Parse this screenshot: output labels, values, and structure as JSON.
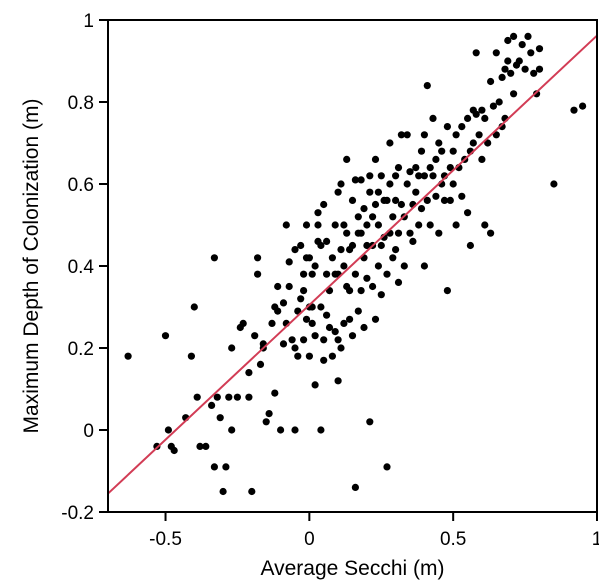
{
  "chart_data": {
    "type": "scatter",
    "title": "",
    "xlabel": "Average Secchi (m)",
    "ylabel": "Maximum Depth of Colonization (m)",
    "xlim": [
      -0.7,
      1.0
    ],
    "ylim": [
      -0.2,
      1.0
    ],
    "x_ticks": [
      -0.5,
      0,
      0.5,
      1
    ],
    "x_tick_labels": [
      "-0.5",
      "0",
      "0.5",
      "1"
    ],
    "y_ticks": [
      -0.2,
      0,
      0.2,
      0.4,
      0.6,
      0.8,
      1
    ],
    "y_tick_labels": [
      "-0.2",
      "0",
      "0.2",
      "0.4",
      "0.6",
      "0.8",
      "1"
    ],
    "grid": false,
    "legend": "none",
    "point_color": "#000000",
    "fit_line_color": "#d23c55",
    "fit_line": {
      "x": [
        -0.7,
        1.0
      ],
      "y": [
        -0.155,
        0.962
      ]
    },
    "series": [
      {
        "values": [
          [
            -0.63,
            0.18
          ],
          [
            -0.53,
            -0.04
          ],
          [
            -0.5,
            0.23
          ],
          [
            -0.49,
            0.0
          ],
          [
            -0.48,
            -0.04
          ],
          [
            -0.47,
            -0.05
          ],
          [
            -0.43,
            0.03
          ],
          [
            -0.41,
            0.18
          ],
          [
            -0.4,
            0.3
          ],
          [
            -0.39,
            0.08
          ],
          [
            -0.38,
            -0.04
          ],
          [
            -0.36,
            -0.04
          ],
          [
            -0.34,
            0.06
          ],
          [
            -0.33,
            0.42
          ],
          [
            -0.33,
            -0.09
          ],
          [
            -0.32,
            0.08
          ],
          [
            -0.31,
            0.03
          ],
          [
            -0.3,
            -0.15
          ],
          [
            -0.29,
            -0.09
          ],
          [
            -0.28,
            0.08
          ],
          [
            -0.27,
            0.0
          ],
          [
            -0.27,
            0.2
          ],
          [
            -0.25,
            0.08
          ],
          [
            -0.24,
            0.25
          ],
          [
            -0.23,
            0.26
          ],
          [
            -0.21,
            0.14
          ],
          [
            -0.21,
            0.08
          ],
          [
            -0.2,
            -0.15
          ],
          [
            -0.19,
            0.23
          ],
          [
            -0.18,
            0.38
          ],
          [
            -0.18,
            0.42
          ],
          [
            -0.17,
            0.16
          ],
          [
            -0.16,
            0.21
          ],
          [
            -0.16,
            0.2
          ],
          [
            -0.15,
            0.02
          ],
          [
            -0.14,
            0.04
          ],
          [
            -0.13,
            0.26
          ],
          [
            -0.12,
            0.09
          ],
          [
            -0.12,
            0.3
          ],
          [
            -0.11,
            0.29
          ],
          [
            -0.11,
            0.35
          ],
          [
            -0.1,
            0.0
          ],
          [
            -0.09,
            0.21
          ],
          [
            -0.09,
            0.31
          ],
          [
            -0.08,
            0.26
          ],
          [
            -0.08,
            0.5
          ],
          [
            -0.07,
            0.41
          ],
          [
            -0.07,
            0.35
          ],
          [
            -0.06,
            0.22
          ],
          [
            -0.05,
            0.2
          ],
          [
            -0.05,
            0.44
          ],
          [
            -0.05,
            0.0
          ],
          [
            -0.04,
            0.18
          ],
          [
            -0.04,
            0.29
          ],
          [
            -0.03,
            0.32
          ],
          [
            -0.03,
            0.45
          ],
          [
            -0.02,
            0.34
          ],
          [
            -0.02,
            0.22
          ],
          [
            -0.02,
            0.38
          ],
          [
            -0.01,
            0.5
          ],
          [
            -0.01,
            0.27
          ],
          [
            -0.01,
            0.42
          ],
          [
            0.0,
            0.18
          ],
          [
            0.0,
            0.3
          ],
          [
            0.0,
            0.42
          ],
          [
            0.01,
            0.26
          ],
          [
            0.01,
            0.38
          ],
          [
            0.01,
            0.3
          ],
          [
            0.02,
            0.11
          ],
          [
            0.02,
            0.23
          ],
          [
            0.02,
            0.4
          ],
          [
            0.03,
            0.46
          ],
          [
            0.03,
            0.53
          ],
          [
            0.03,
            0.5
          ],
          [
            0.04,
            0.3
          ],
          [
            0.04,
            0.45
          ],
          [
            0.04,
            0.0
          ],
          [
            0.05,
            0.17
          ],
          [
            0.05,
            0.22
          ],
          [
            0.05,
            0.55
          ],
          [
            0.06,
            0.28
          ],
          [
            0.06,
            0.38
          ],
          [
            0.06,
            0.46
          ],
          [
            0.07,
            0.25
          ],
          [
            0.07,
            0.34
          ],
          [
            0.08,
            0.42
          ],
          [
            0.08,
            0.18
          ],
          [
            0.09,
            0.24
          ],
          [
            0.09,
            0.38
          ],
          [
            0.09,
            0.5
          ],
          [
            0.1,
            0.22
          ],
          [
            0.1,
            0.12
          ],
          [
            0.1,
            0.38
          ],
          [
            0.1,
            0.58
          ],
          [
            0.11,
            0.44
          ],
          [
            0.11,
            0.2
          ],
          [
            0.11,
            0.6
          ],
          [
            0.12,
            0.4
          ],
          [
            0.12,
            0.26
          ],
          [
            0.12,
            0.5
          ],
          [
            0.13,
            0.35
          ],
          [
            0.13,
            0.48
          ],
          [
            0.13,
            0.66
          ],
          [
            0.14,
            0.27
          ],
          [
            0.14,
            0.44
          ],
          [
            0.14,
            0.34
          ],
          [
            0.15,
            0.45
          ],
          [
            0.15,
            0.23
          ],
          [
            0.15,
            0.56
          ],
          [
            0.16,
            -0.14
          ],
          [
            0.16,
            0.38
          ],
          [
            0.16,
            0.61
          ],
          [
            0.17,
            0.29
          ],
          [
            0.17,
            0.48
          ],
          [
            0.17,
            0.52
          ],
          [
            0.18,
            0.34
          ],
          [
            0.18,
            0.48
          ],
          [
            0.18,
            0.61
          ],
          [
            0.19,
            0.42
          ],
          [
            0.19,
            0.54
          ],
          [
            0.19,
            0.25
          ],
          [
            0.2,
            0.5
          ],
          [
            0.2,
            0.37
          ],
          [
            0.2,
            0.45
          ],
          [
            0.21,
            0.02
          ],
          [
            0.21,
            0.58
          ],
          [
            0.21,
            0.62
          ],
          [
            0.22,
            0.45
          ],
          [
            0.22,
            0.52
          ],
          [
            0.22,
            0.35
          ],
          [
            0.23,
            0.27
          ],
          [
            0.23,
            0.55
          ],
          [
            0.23,
            0.66
          ],
          [
            0.24,
            0.4
          ],
          [
            0.24,
            0.5
          ],
          [
            0.24,
            0.58
          ],
          [
            0.25,
            0.62
          ],
          [
            0.25,
            0.33
          ],
          [
            0.25,
            0.45
          ],
          [
            0.26,
            0.47
          ],
          [
            0.26,
            0.56
          ],
          [
            0.27,
            -0.09
          ],
          [
            0.27,
            0.38
          ],
          [
            0.27,
            0.56
          ],
          [
            0.28,
            0.48
          ],
          [
            0.28,
            0.6
          ],
          [
            0.28,
            0.7
          ],
          [
            0.29,
            0.52
          ],
          [
            0.29,
            0.42
          ],
          [
            0.3,
            0.56
          ],
          [
            0.3,
            0.44
          ],
          [
            0.3,
            0.62
          ],
          [
            0.31,
            0.48
          ],
          [
            0.31,
            0.36
          ],
          [
            0.31,
            0.64
          ],
          [
            0.32,
            0.55
          ],
          [
            0.32,
            0.72
          ],
          [
            0.33,
            0.52
          ],
          [
            0.33,
            0.4
          ],
          [
            0.34,
            0.6
          ],
          [
            0.34,
            0.72
          ],
          [
            0.35,
            0.48
          ],
          [
            0.35,
            0.63
          ],
          [
            0.36,
            0.55
          ],
          [
            0.36,
            0.46
          ],
          [
            0.37,
            0.64
          ],
          [
            0.37,
            0.58
          ],
          [
            0.38,
            0.5
          ],
          [
            0.38,
            0.62
          ],
          [
            0.39,
            0.68
          ],
          [
            0.39,
            0.54
          ],
          [
            0.4,
            0.62
          ],
          [
            0.4,
            0.4
          ],
          [
            0.4,
            0.72
          ],
          [
            0.41,
            0.56
          ],
          [
            0.41,
            0.84
          ],
          [
            0.42,
            0.64
          ],
          [
            0.42,
            0.5
          ],
          [
            0.43,
            0.62
          ],
          [
            0.43,
            0.76
          ],
          [
            0.44,
            0.57
          ],
          [
            0.44,
            0.66
          ],
          [
            0.45,
            0.48
          ],
          [
            0.45,
            0.7
          ],
          [
            0.46,
            0.6
          ],
          [
            0.46,
            0.68
          ],
          [
            0.47,
            0.62
          ],
          [
            0.47,
            0.56
          ],
          [
            0.48,
            0.74
          ],
          [
            0.48,
            0.34
          ],
          [
            0.49,
            0.64
          ],
          [
            0.49,
            0.56
          ],
          [
            0.5,
            0.68
          ],
          [
            0.5,
            0.6
          ],
          [
            0.51,
            0.72
          ],
          [
            0.51,
            0.5
          ],
          [
            0.52,
            0.64
          ],
          [
            0.53,
            0.74
          ],
          [
            0.53,
            0.57
          ],
          [
            0.54,
            0.66
          ],
          [
            0.55,
            0.76
          ],
          [
            0.55,
            0.53
          ],
          [
            0.56,
            0.45
          ],
          [
            0.56,
            0.68
          ],
          [
            0.57,
            0.7
          ],
          [
            0.57,
            0.78
          ],
          [
            0.58,
            0.92
          ],
          [
            0.58,
            0.77
          ],
          [
            0.59,
            0.72
          ],
          [
            0.6,
            0.66
          ],
          [
            0.6,
            0.78
          ],
          [
            0.61,
            0.5
          ],
          [
            0.61,
            0.76
          ],
          [
            0.62,
            0.7
          ],
          [
            0.63,
            0.48
          ],
          [
            0.63,
            0.85
          ],
          [
            0.64,
            0.79
          ],
          [
            0.65,
            0.92
          ],
          [
            0.65,
            0.72
          ],
          [
            0.66,
            0.8
          ],
          [
            0.67,
            0.86
          ],
          [
            0.67,
            0.74
          ],
          [
            0.68,
            0.88
          ],
          [
            0.68,
            0.76
          ],
          [
            0.69,
            0.95
          ],
          [
            0.69,
            0.9
          ],
          [
            0.7,
            0.87
          ],
          [
            0.71,
            0.82
          ],
          [
            0.71,
            0.96
          ],
          [
            0.72,
            0.89
          ],
          [
            0.73,
            0.9
          ],
          [
            0.74,
            0.94
          ],
          [
            0.75,
            0.88
          ],
          [
            0.76,
            0.96
          ],
          [
            0.77,
            0.92
          ],
          [
            0.78,
            0.87
          ],
          [
            0.79,
            0.82
          ],
          [
            0.8,
            0.93
          ],
          [
            0.8,
            0.88
          ],
          [
            0.85,
            0.6
          ],
          [
            0.92,
            0.78
          ],
          [
            0.95,
            0.79
          ]
        ]
      }
    ]
  }
}
